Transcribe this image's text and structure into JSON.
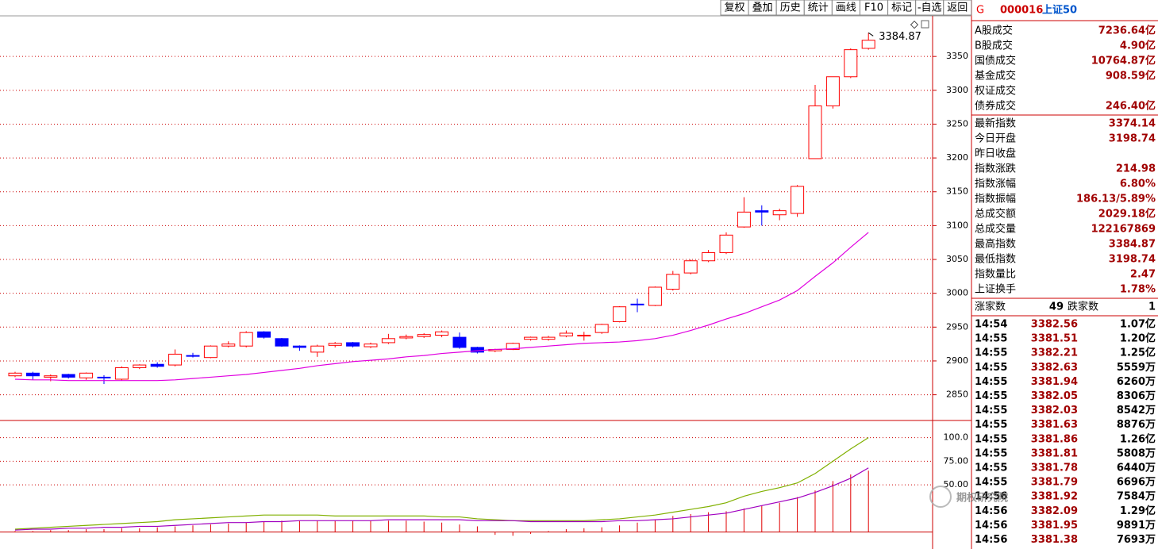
{
  "toolbar": [
    "复权",
    "叠加",
    "历史",
    "统计",
    "画线",
    "F10",
    "标记",
    "-自选",
    "返回"
  ],
  "header": {
    "marker": "G",
    "code": "000016",
    "name": "上证50"
  },
  "stats": [
    {
      "label": "A股成交",
      "value": "7236.64亿"
    },
    {
      "label": "B股成交",
      "value": "4.90亿"
    },
    {
      "label": "国债成交",
      "value": "10764.87亿"
    },
    {
      "label": "基金成交",
      "value": "908.59亿"
    },
    {
      "label": "权证成交"
    },
    {
      "label": "债券成交",
      "value": "246.40亿"
    },
    {
      "label": "最新指数",
      "value": "3374.14"
    },
    {
      "label": "今日开盘",
      "value": "3198.74"
    },
    {
      "label": "昨日收盘"
    },
    {
      "label": "指数涨跌",
      "value": "214.98"
    },
    {
      "label": "指数涨幅",
      "value": "6.80%"
    },
    {
      "label": "指数振幅",
      "value": "186.13/5.89%"
    },
    {
      "label": "总成交额",
      "value": "2029.18亿"
    },
    {
      "label": "总成交量",
      "value": "122167869"
    },
    {
      "label": "最高指数",
      "value": "3384.87"
    },
    {
      "label": "最低指数",
      "value": "3198.74"
    },
    {
      "label": "指数量比",
      "value": "2.47"
    },
    {
      "label": "上证换手",
      "value": "1.78%"
    }
  ],
  "breadth": {
    "up_label": "涨家数",
    "up": "49",
    "down_label": "跌家数",
    "down": "1"
  },
  "trades": [
    {
      "time": "14:54",
      "price": "3382.56",
      "volume": "1.07亿"
    },
    {
      "time": "14:55",
      "price": "3381.51",
      "volume": "1.20亿"
    },
    {
      "time": "14:55",
      "price": "3382.21",
      "volume": "1.25亿"
    },
    {
      "time": "14:55",
      "price": "3382.63",
      "volume": "5559万"
    },
    {
      "time": "14:55",
      "price": "3381.94",
      "volume": "6260万"
    },
    {
      "time": "14:55",
      "price": "3382.05",
      "volume": "8306万"
    },
    {
      "time": "14:55",
      "price": "3382.03",
      "volume": "8542万"
    },
    {
      "time": "14:55",
      "price": "3381.63",
      "volume": "8876万"
    },
    {
      "time": "14:55",
      "price": "3381.86",
      "volume": "1.26亿"
    },
    {
      "time": "14:55",
      "price": "3381.81",
      "volume": "5808万"
    },
    {
      "time": "14:55",
      "price": "3381.78",
      "volume": "6440万"
    },
    {
      "time": "14:55",
      "price": "3381.79",
      "volume": "6696万"
    },
    {
      "time": "14:56",
      "price": "3381.92",
      "volume": "7584万"
    },
    {
      "time": "14:56",
      "price": "3382.09",
      "volume": "1.29亿"
    },
    {
      "time": "14:56",
      "price": "3381.95",
      "volume": "9891万"
    },
    {
      "time": "14:56",
      "price": "3381.38",
      "volume": "7693万"
    }
  ],
  "watermark": "期权研究院",
  "chart_data": [
    {
      "type": "candlestick",
      "open": [
        2878,
        2882,
        2876,
        2880,
        2875,
        2876,
        2873,
        2890,
        2895,
        2894,
        2908,
        2905,
        2922,
        2922,
        2943,
        2933,
        2922,
        2913,
        2923,
        2927,
        2921,
        2927,
        2934,
        2936,
        2938,
        2935,
        2920,
        2915,
        2917,
        2932,
        2932,
        2937,
        2938,
        2942,
        2958,
        2984,
        2982,
        3006,
        3030,
        3048,
        3060,
        3098,
        3122,
        3116,
        3118,
        3199,
        3277,
        3320,
        3362
      ],
      "high": [
        2884,
        2884,
        2880,
        2881,
        2883,
        2879,
        2892,
        2895,
        2898,
        2917,
        2912,
        2923,
        2929,
        2944,
        2944,
        2934,
        2923,
        2924,
        2928,
        2928,
        2927,
        2940,
        2939,
        2941,
        2945,
        2942,
        2921,
        2918,
        2927,
        2936,
        2937,
        2945,
        2943,
        2955,
        2981,
        2992,
        3010,
        3033,
        3050,
        3064,
        3090,
        3142,
        3130,
        3125,
        3160,
        3308,
        3320,
        3362,
        3385
      ],
      "low": [
        2876,
        2872,
        2870,
        2874,
        2872,
        2866,
        2871,
        2888,
        2890,
        2892,
        2905,
        2904,
        2920,
        2920,
        2933,
        2921,
        2915,
        2906,
        2920,
        2920,
        2919,
        2925,
        2932,
        2934,
        2935,
        2918,
        2911,
        2913,
        2916,
        2930,
        2930,
        2935,
        2930,
        2940,
        2957,
        2972,
        2981,
        3004,
        3028,
        3046,
        3058,
        3097,
        3100,
        3108,
        3113,
        3199,
        3273,
        3318,
        3360
      ],
      "close": [
        2882,
        2878,
        2878,
        2876,
        2882,
        2875,
        2890,
        2894,
        2892,
        2910,
        2907,
        2922,
        2925,
        2942,
        2935,
        2922,
        2920,
        2922,
        2926,
        2922,
        2925,
        2933,
        2936,
        2939,
        2943,
        2920,
        2913,
        2917,
        2926,
        2935,
        2935,
        2941,
        2938,
        2954,
        2980,
        2983,
        3009,
        3028,
        3048,
        3060,
        3086,
        3120,
        3120,
        3122,
        3158,
        3277,
        3320,
        3360,
        3374
      ],
      "up_color": "#ff0000",
      "down_color": "#0000ff",
      "ma": {
        "color": "#e000e0",
        "values": [
          2873,
          2872,
          2872,
          2871,
          2871,
          2871,
          2871,
          2871,
          2871,
          2872,
          2874,
          2876,
          2878,
          2880,
          2883,
          2886,
          2889,
          2893,
          2896,
          2899,
          2901,
          2903,
          2906,
          2908,
          2911,
          2913,
          2915,
          2917,
          2918,
          2920,
          2922,
          2924,
          2926,
          2927,
          2928,
          2930,
          2933,
          2938,
          2945,
          2953,
          2962,
          2970,
          2980,
          2990,
          3004,
          3025,
          3045,
          3068,
          3090
        ]
      },
      "ylim": [
        2812,
        3410
      ],
      "yticks": [
        2850,
        2900,
        2950,
        3000,
        3050,
        3100,
        3150,
        3200,
        3250,
        3300,
        3350
      ],
      "grid": true,
      "annotation": "3384.87"
    },
    {
      "type": "line",
      "ylim": [
        -18,
        114
      ],
      "yticks": [
        {
          "value": 50,
          "label": "50.00"
        },
        {
          "value": 75,
          "label": "75.00"
        },
        {
          "value": 100,
          "label": "100.0"
        }
      ],
      "grid": true,
      "series": [
        {
          "color": "#80b000",
          "values": [
            3,
            4,
            5,
            6,
            7,
            8,
            9,
            10,
            11,
            13,
            14,
            15,
            16,
            17,
            18,
            18,
            18,
            18,
            17,
            17,
            17,
            17,
            17,
            17,
            16,
            16,
            14,
            13,
            12,
            12,
            12,
            12,
            12,
            13,
            14,
            16,
            18,
            21,
            24,
            27,
            31,
            38,
            43,
            47,
            52,
            62,
            75,
            88,
            100
          ]
        },
        {
          "color": "#a000c0",
          "values": [
            2,
            3,
            3,
            4,
            4,
            5,
            5,
            6,
            6,
            7,
            8,
            9,
            10,
            10,
            11,
            11,
            12,
            12,
            12,
            12,
            12,
            13,
            13,
            13,
            13,
            13,
            12,
            12,
            12,
            11,
            11,
            11,
            11,
            11,
            12,
            12,
            13,
            14,
            16,
            18,
            20,
            24,
            28,
            32,
            36,
            42,
            49,
            57,
            68
          ]
        }
      ],
      "bars": {
        "color": "#e00000",
        "values": [
          1,
          1,
          2,
          2,
          3,
          3,
          4,
          4,
          5,
          6,
          7,
          8,
          9,
          10,
          11,
          12,
          12,
          12,
          12,
          12,
          12,
          12,
          12,
          11,
          10,
          8,
          6,
          -3,
          -4,
          -2,
          1,
          3,
          4,
          5,
          7,
          10,
          13,
          17,
          19,
          21,
          22,
          25,
          28,
          31,
          37,
          44,
          54,
          61,
          65
        ]
      }
    }
  ]
}
